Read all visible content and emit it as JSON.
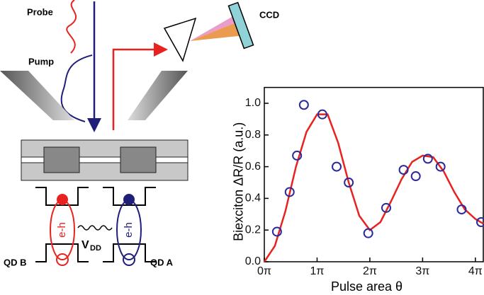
{
  "chart_data": {
    "type": "scatter",
    "xlabel": "Pulse area θ",
    "ylabel": "Biexciton ΔR/R (a.u.)",
    "xlim": [
      0,
      4.15
    ],
    "ylim": [
      0,
      1.1
    ],
    "xticks": [
      {
        "value": 0,
        "label": "0π"
      },
      {
        "value": 1,
        "label": "1π"
      },
      {
        "value": 2,
        "label": "2π"
      },
      {
        "value": 3,
        "label": "3π"
      },
      {
        "value": 4,
        "label": "4π"
      }
    ],
    "yticks": [
      {
        "value": 0,
        "label": "0.0"
      },
      0.2,
      0.4,
      0.6,
      0.8,
      {
        "value": 1,
        "label": "1.0"
      }
    ],
    "series": [
      {
        "mode": "line",
        "color": "#e8231f",
        "x": [
          0,
          0.2,
          0.4,
          0.6,
          0.8,
          1.0,
          1.2,
          1.4,
          1.6,
          1.8,
          2.0,
          2.2,
          2.4,
          2.6,
          2.8,
          3.0,
          3.2,
          3.4,
          3.6,
          3.8,
          4.0,
          4.15
        ],
        "values": [
          0,
          0.1,
          0.32,
          0.6,
          0.82,
          0.93,
          0.93,
          0.75,
          0.5,
          0.29,
          0.2,
          0.25,
          0.38,
          0.52,
          0.63,
          0.67,
          0.66,
          0.57,
          0.44,
          0.33,
          0.27,
          0.24
        ]
      },
      {
        "mode": "markers",
        "color": "#2a2a9a",
        "x": [
          0.24,
          0.48,
          0.62,
          0.75,
          1.1,
          1.37,
          1.6,
          1.97,
          2.31,
          2.64,
          2.87,
          3.1,
          3.34,
          3.74,
          4.11
        ],
        "values": [
          0.19,
          0.44,
          0.67,
          0.99,
          0.93,
          0.6,
          0.5,
          0.18,
          0.34,
          0.58,
          0.54,
          0.65,
          0.6,
          0.33,
          0.25
        ]
      }
    ]
  },
  "diagram": {
    "probe": "Probe",
    "pump": "Pump",
    "ccd": "CCD",
    "eh_b": "e-h",
    "eh_a": "e-h",
    "v": "V",
    "v_sub": "DD",
    "qd_b": "QD B",
    "qd_a": "QD A"
  }
}
